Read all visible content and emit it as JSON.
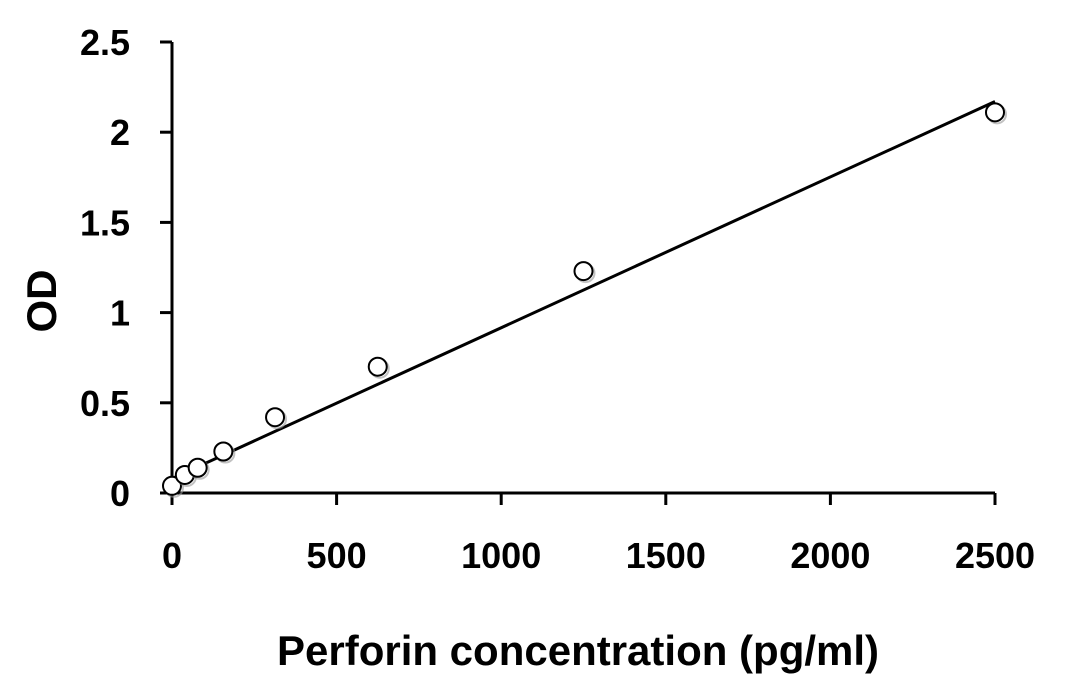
{
  "chart_data": {
    "type": "scatter",
    "title": "",
    "xlabel": "Perforin concentration (pg/ml)",
    "ylabel": "OD",
    "xlim": [
      0,
      2500
    ],
    "ylim": [
      0,
      2.5
    ],
    "x_ticks": [
      "0",
      "500",
      "1000",
      "1500",
      "2000",
      "2500"
    ],
    "y_ticks": [
      "0",
      "0.5",
      "1",
      "1.5",
      "2",
      "2.5"
    ],
    "grid": false,
    "legend": "none",
    "series": [
      {
        "marker": "open-circle",
        "x": [
          0,
          39,
          78,
          156,
          313,
          625,
          1250,
          2500
        ],
        "y": [
          0.04,
          0.1,
          0.14,
          0.23,
          0.42,
          0.7,
          1.23,
          2.11
        ]
      }
    ],
    "trendline": {
      "type": "linear",
      "x": [
        0,
        2500
      ],
      "y": [
        0.08,
        2.17
      ]
    },
    "colors": {
      "axis": "#000000",
      "marker_stroke": "#000000",
      "marker_fill": "#ffffff",
      "trendline": "#000000"
    }
  }
}
